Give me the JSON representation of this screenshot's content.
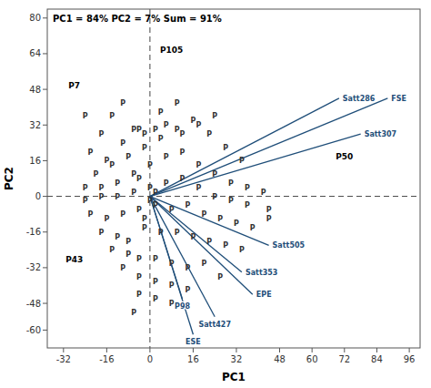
{
  "chart_data": {
    "type": "biplot",
    "title": "PC1 = 84% PC2 = 7%  Sum = 91%",
    "x_label": "PC1",
    "y_label": "PC2",
    "xlim": [
      -38,
      100
    ],
    "ylim": [
      -68,
      84
    ],
    "xticks": [
      -32,
      -16,
      0,
      16,
      32,
      48,
      60,
      72,
      84,
      96
    ],
    "yticks": [
      -60,
      -48,
      -32,
      -16,
      0,
      16,
      32,
      48,
      64,
      80
    ],
    "grid": false,
    "reference_x": 0,
    "reference_y": 0,
    "vectors": {
      "names": [
        "FSE",
        "Satt286",
        "Satt307",
        "Satt505",
        "Satt353",
        "EPE",
        "Satt427",
        "ESE",
        "P98"
      ],
      "x": [
        88,
        70,
        78,
        44,
        34,
        38,
        24,
        16,
        12
      ],
      "y": [
        44,
        44,
        28,
        -22,
        -34,
        -44,
        -54,
        -62,
        -46
      ]
    },
    "named_points": {
      "labels": [
        "P7",
        "P105",
        "P43",
        "P50"
      ],
      "x": [
        -28,
        8,
        -28,
        72
      ],
      "y": [
        50,
        66,
        -28,
        18
      ]
    },
    "point_label": "P",
    "points": {
      "x": [
        -24,
        -18,
        -14,
        -10,
        -22,
        -16,
        -10,
        -4,
        -20,
        -14,
        -8,
        -2,
        4,
        10,
        16,
        22,
        28,
        34,
        -24,
        -18,
        -12,
        -6,
        0,
        6,
        12,
        18,
        24,
        30,
        36,
        42,
        -24,
        -18,
        -12,
        -6,
        0,
        6,
        12,
        18,
        24,
        30,
        36,
        44,
        -22,
        -16,
        -10,
        -4,
        2,
        8,
        14,
        20,
        26,
        32,
        38,
        44,
        -18,
        -12,
        -8,
        -2,
        4,
        10,
        16,
        22,
        28,
        34,
        -14,
        -8,
        -4,
        2,
        8,
        14,
        20,
        26,
        -10,
        -4,
        2,
        8,
        14,
        -4,
        2,
        8,
        -6,
        4,
        10,
        2,
        6,
        12,
        18,
        24,
        -6,
        -2,
        0,
        2,
        -4,
        -2
      ],
      "y": [
        36,
        28,
        36,
        42,
        20,
        16,
        24,
        30,
        10,
        14,
        18,
        22,
        26,
        30,
        34,
        28,
        22,
        16,
        4,
        4,
        6,
        10,
        14,
        18,
        20,
        14,
        10,
        6,
        4,
        2,
        -2,
        0,
        0,
        2,
        4,
        6,
        8,
        4,
        0,
        -2,
        -4,
        -6,
        -8,
        -10,
        -8,
        -6,
        -4,
        -6,
        -4,
        -8,
        -10,
        -12,
        -14,
        -10,
        -16,
        -18,
        -20,
        -14,
        -16,
        -16,
        -18,
        -20,
        -22,
        -24,
        -24,
        -26,
        -28,
        -28,
        -30,
        -32,
        -30,
        -36,
        -32,
        -36,
        -38,
        -40,
        -42,
        -44,
        -46,
        -48,
        -52,
        38,
        42,
        30,
        32,
        28,
        32,
        36,
        30,
        28,
        -2,
        2,
        8,
        -10
      ]
    }
  }
}
